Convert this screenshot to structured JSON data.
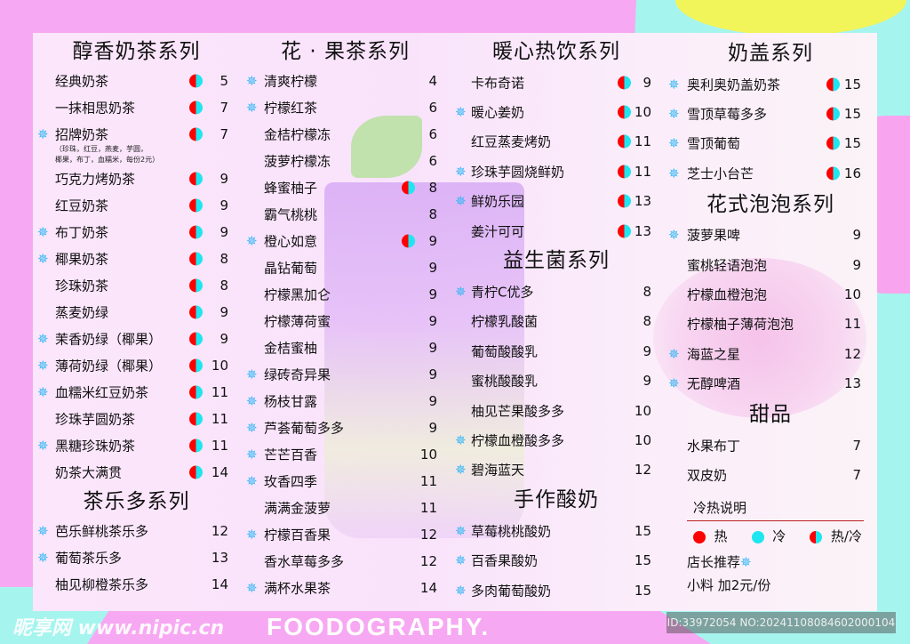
{
  "watermark_food": "FOODOGRAPHY.",
  "colors": {
    "hot": "#ff0000",
    "cold": "#1ee6f0",
    "recommend": "#2fb6f5"
  },
  "columns": [
    {
      "sections": [
        {
          "title": "醇香奶茶系列",
          "items": [
            {
              "name": "经典奶茶",
              "price": "5",
              "temp": "both",
              "rec": false
            },
            {
              "name": "一抹相思奶茶",
              "price": "7",
              "temp": "both",
              "rec": false
            },
            {
              "name": "招牌奶茶",
              "price": "7",
              "temp": "both",
              "rec": true,
              "note": [
                "（珍珠，红豆，燕麦，芋圆，",
                "椰果，布丁，血糯米，每份2元）"
              ]
            },
            {
              "name": "巧克力烤奶茶",
              "price": "9",
              "temp": "both",
              "rec": false
            },
            {
              "name": "红豆奶茶",
              "price": "9",
              "temp": "both",
              "rec": false
            },
            {
              "name": "布丁奶茶",
              "price": "9",
              "temp": "both",
              "rec": true
            },
            {
              "name": "椰果奶茶",
              "price": "8",
              "temp": "both",
              "rec": true
            },
            {
              "name": "珍珠奶茶",
              "price": "8",
              "temp": "both",
              "rec": false
            },
            {
              "name": "蒸麦奶绿",
              "price": "9",
              "temp": "both",
              "rec": false
            },
            {
              "name": "茉香奶绿（椰果）",
              "price": "9",
              "temp": "both",
              "rec": true
            },
            {
              "name": "薄荷奶绿（椰果）",
              "price": "10",
              "temp": "both",
              "rec": true
            },
            {
              "name": "血糯米红豆奶茶",
              "price": "11",
              "temp": "both",
              "rec": true
            },
            {
              "name": "珍珠芋圆奶茶",
              "price": "11",
              "temp": "both",
              "rec": false
            },
            {
              "name": "黑糖珍珠奶茶",
              "price": "11",
              "temp": "both",
              "rec": true
            },
            {
              "name": "奶茶大满贯",
              "price": "14",
              "temp": "both",
              "rec": false
            }
          ]
        },
        {
          "title": "茶乐多系列",
          "items": [
            {
              "name": "芭乐鲜桃茶乐多",
              "price": "12",
              "temp": "",
              "rec": true
            },
            {
              "name": "葡萄茶乐多",
              "price": "13",
              "temp": "",
              "rec": true
            },
            {
              "name": "柚见柳橙茶乐多",
              "price": "14",
              "temp": "",
              "rec": false
            }
          ]
        }
      ]
    },
    {
      "sections": [
        {
          "title": "花 · 果茶系列",
          "items": [
            {
              "name": "清爽柠檬",
              "price": "4",
              "temp": "",
              "rec": true
            },
            {
              "name": "柠檬红茶",
              "price": "6",
              "temp": "",
              "rec": true
            },
            {
              "name": "金桔柠檬冻",
              "price": "6",
              "temp": "",
              "rec": false
            },
            {
              "name": "菠萝柠檬冻",
              "price": "6",
              "temp": "",
              "rec": false
            },
            {
              "name": "蜂蜜柚子",
              "price": "8",
              "temp": "both",
              "rec": false
            },
            {
              "name": "霸气桃桃",
              "price": "8",
              "temp": "",
              "rec": false
            },
            {
              "name": "橙心如意",
              "price": "9",
              "temp": "both",
              "rec": true
            },
            {
              "name": "晶钻葡萄",
              "price": "9",
              "temp": "",
              "rec": false
            },
            {
              "name": "柠檬黑加仑",
              "price": "9",
              "temp": "",
              "rec": false
            },
            {
              "name": "柠檬薄荷蜜",
              "price": "9",
              "temp": "",
              "rec": false
            },
            {
              "name": "金桔蜜柚",
              "price": "9",
              "temp": "",
              "rec": false
            },
            {
              "name": "绿砖奇异果",
              "price": "9",
              "temp": "",
              "rec": true
            },
            {
              "name": "杨枝甘露",
              "price": "9",
              "temp": "",
              "rec": true
            },
            {
              "name": "芦荟葡萄多多",
              "price": "9",
              "temp": "",
              "rec": true
            },
            {
              "name": "芒芒百香",
              "price": "10",
              "temp": "",
              "rec": true
            },
            {
              "name": "玫香四季",
              "price": "11",
              "temp": "",
              "rec": true
            },
            {
              "name": "满满金菠萝",
              "price": "11",
              "temp": "",
              "rec": false
            },
            {
              "name": "柠檬百香果",
              "price": "12",
              "temp": "",
              "rec": true
            },
            {
              "name": "香水草莓多多",
              "price": "12",
              "temp": "",
              "rec": false
            },
            {
              "name": "满杯水果茶",
              "price": "14",
              "temp": "",
              "rec": true
            }
          ]
        }
      ]
    },
    {
      "sections": [
        {
          "title": "暖心热饮系列",
          "items": [
            {
              "name": "卡布奇诺",
              "price": "9",
              "temp": "both",
              "rec": false
            },
            {
              "name": "暖心姜奶",
              "price": "10",
              "temp": "both",
              "rec": true
            },
            {
              "name": "红豆蒸麦烤奶",
              "price": "11",
              "temp": "both",
              "rec": false
            },
            {
              "name": "珍珠芋圆烧鲜奶",
              "price": "11",
              "temp": "both",
              "rec": true
            },
            {
              "name": "鲜奶乐园",
              "price": "13",
              "temp": "both",
              "rec": true
            },
            {
              "name": "姜汁可可",
              "price": "13",
              "temp": "both",
              "rec": false
            }
          ]
        },
        {
          "title": "益生菌系列",
          "items": [
            {
              "name": "青柠C优多",
              "price": "8",
              "temp": "",
              "rec": true
            },
            {
              "name": "柠檬乳酸菌",
              "price": "8",
              "temp": "",
              "rec": false
            },
            {
              "name": "葡萄酸酸乳",
              "price": "9",
              "temp": "",
              "rec": false
            },
            {
              "name": "蜜桃酸酸乳",
              "price": "9",
              "temp": "",
              "rec": false
            },
            {
              "name": "柚见芒果酸多多",
              "price": "10",
              "temp": "",
              "rec": false
            },
            {
              "name": "柠檬血橙酸多多",
              "price": "10",
              "temp": "",
              "rec": true
            },
            {
              "name": "碧海蓝天",
              "price": "12",
              "temp": "",
              "rec": true
            }
          ]
        },
        {
          "title": "手作酸奶",
          "items": [
            {
              "name": "草莓桃桃酸奶",
              "price": "15",
              "temp": "",
              "rec": true
            },
            {
              "name": "百香果酸奶",
              "price": "15",
              "temp": "",
              "rec": true
            },
            {
              "name": "多肉葡萄酸奶",
              "price": "15",
              "temp": "",
              "rec": true
            }
          ]
        }
      ]
    },
    {
      "sections": [
        {
          "title": "奶盖系列",
          "items": [
            {
              "name": "奥利奥奶盖奶茶",
              "price": "15",
              "temp": "both",
              "rec": true
            },
            {
              "name": "雪顶草莓多多",
              "price": "15",
              "temp": "both",
              "rec": true
            },
            {
              "name": "雪顶葡萄",
              "price": "15",
              "temp": "both",
              "rec": true
            },
            {
              "name": "芝士小台芒",
              "price": "16",
              "temp": "both",
              "rec": true
            }
          ]
        },
        {
          "title": "花式泡泡系列",
          "items": [
            {
              "name": "菠萝果啤",
              "price": "9",
              "temp": "",
              "rec": true
            },
            {
              "name": "蜜桃轻语泡泡",
              "price": "9",
              "temp": "",
              "rec": false
            },
            {
              "name": "柠檬血橙泡泡",
              "price": "10",
              "temp": "",
              "rec": false
            },
            {
              "name": "柠檬柚子薄荷泡泡",
              "price": "11",
              "temp": "",
              "rec": false
            },
            {
              "name": "海蓝之星",
              "price": "12",
              "temp": "",
              "rec": true
            },
            {
              "name": "无醇啤酒",
              "price": "13",
              "temp": "",
              "rec": true
            }
          ]
        },
        {
          "title": "甜品",
          "items": [
            {
              "name": "水果布丁",
              "price": "7",
              "temp": "",
              "rec": false
            },
            {
              "name": "双皮奶",
              "price": "7",
              "temp": "",
              "rec": false
            }
          ]
        }
      ]
    }
  ],
  "legend": {
    "title": "冷热说明",
    "hot": "热",
    "cold": "冷",
    "both": "热/冷",
    "recommend": "店长推荐",
    "addon": "小料  加2元/份"
  },
  "watermark_site": "昵享网 www.nipic.cn",
  "image_id": "ID:33972054 NO:20241108084602000104"
}
